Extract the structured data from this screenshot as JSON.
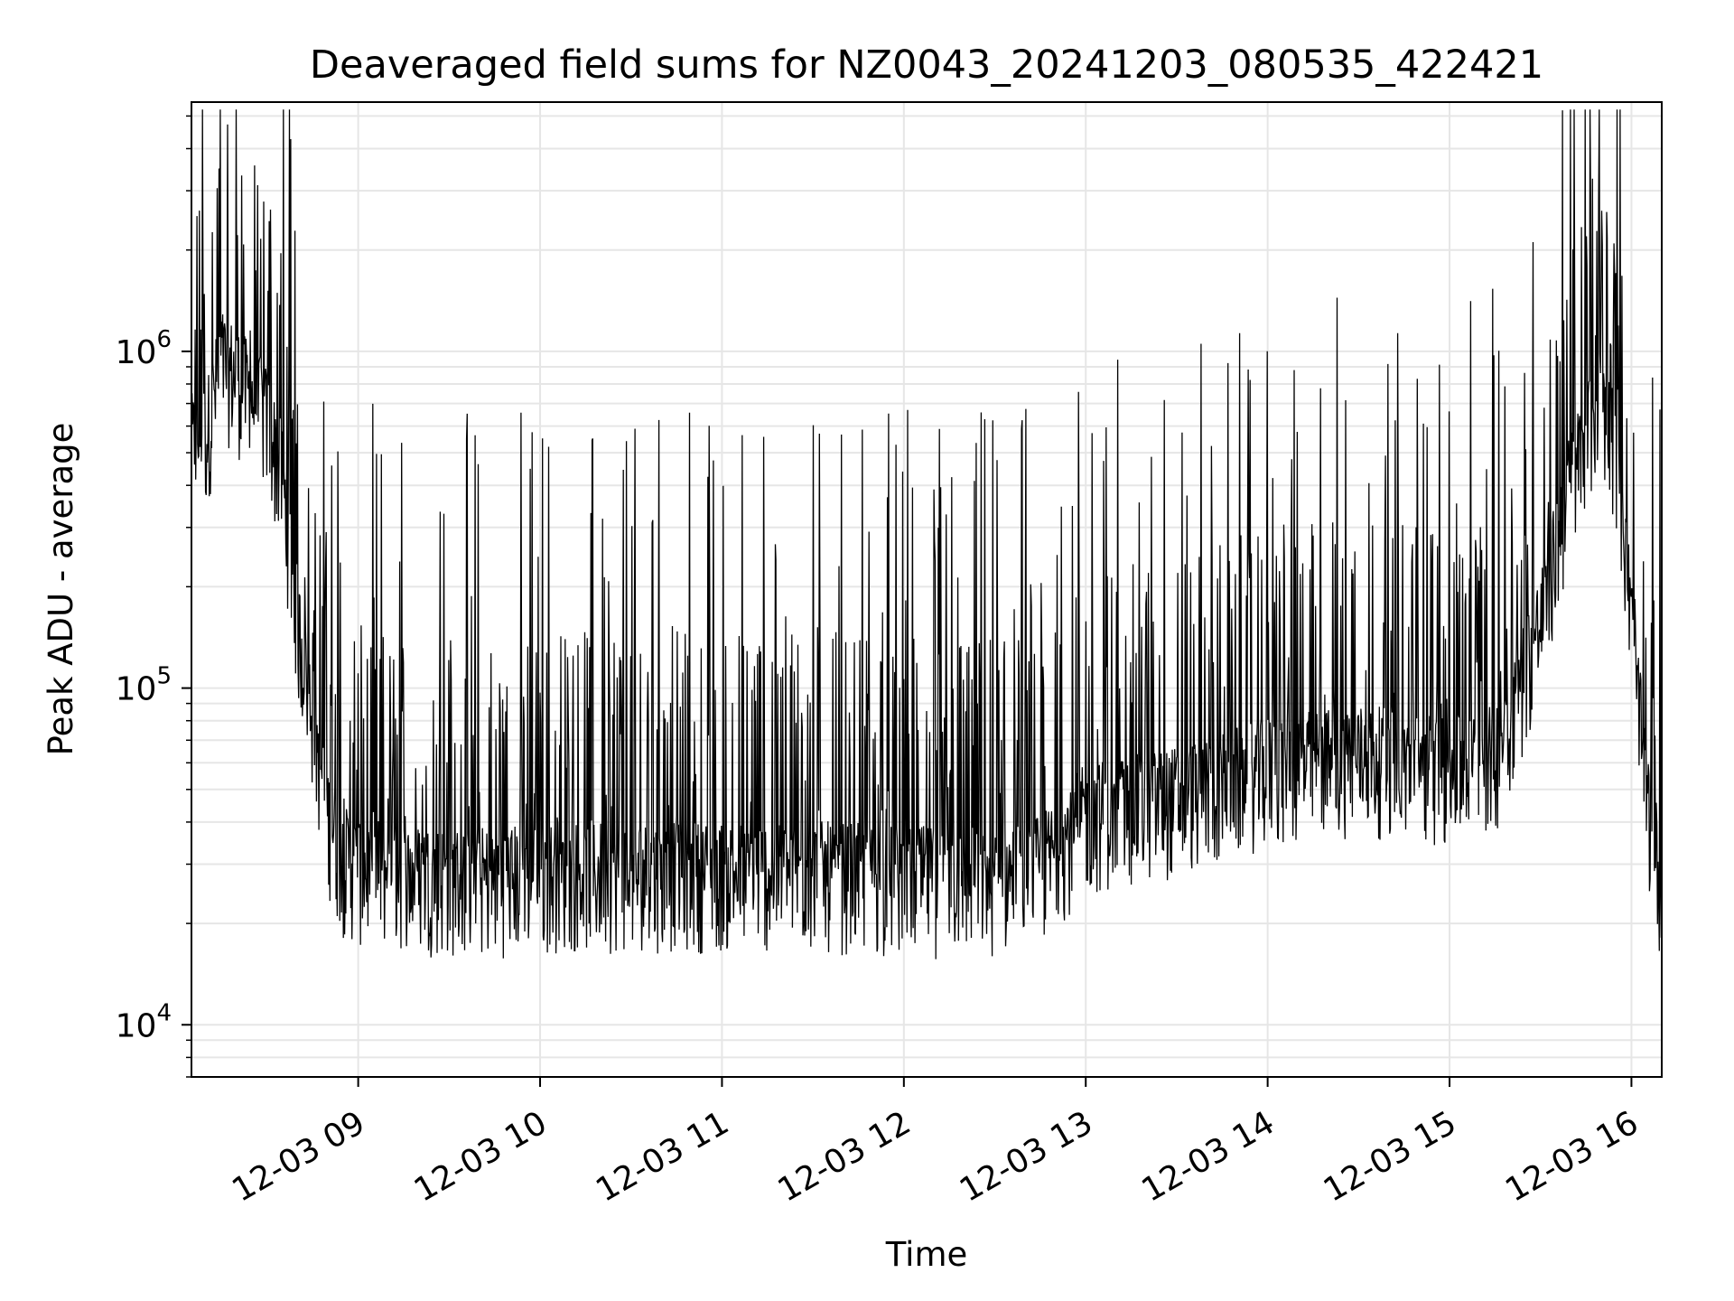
{
  "chart_data": {
    "type": "line",
    "title": "Deaveraged field sums for NZ0043_20241203_080535_422421",
    "xlabel": "Time",
    "ylabel": "Peak ADU - average",
    "yscale": "log",
    "ylim": [
      7000,
      5500000
    ],
    "xlim": [
      "2024-12-03 08:05",
      "2024-12-03 16:10"
    ],
    "grid": true,
    "x_ticks": [
      "12-03 09",
      "12-03 10",
      "12-03 11",
      "12-03 12",
      "12-03 13",
      "12-03 14",
      "12-03 15",
      "12-03 16"
    ],
    "y_ticks": [
      {
        "value": 10000,
        "base": "10",
        "exp": "4"
      },
      {
        "value": 100000,
        "base": "10",
        "exp": "5"
      },
      {
        "value": 1000000,
        "base": "10",
        "exp": "6"
      }
    ],
    "line_color": "#000000",
    "series": [
      {
        "x": [
          "2024-12-03 08:05",
          "2024-12-03 08:10",
          "2024-12-03 08:15",
          "2024-12-03 08:20",
          "2024-12-03 08:25",
          "2024-12-03 08:30",
          "2024-12-03 08:35",
          "2024-12-03 08:40",
          "2024-12-03 08:45",
          "2024-12-03 08:50",
          "2024-12-03 08:55",
          "2024-12-03 09:00",
          "2024-12-03 09:15",
          "2024-12-03 09:30",
          "2024-12-03 09:45",
          "2024-12-03 10:00",
          "2024-12-03 10:30",
          "2024-12-03 11:00",
          "2024-12-03 11:30",
          "2024-12-03 12:00",
          "2024-12-03 12:30",
          "2024-12-03 12:45",
          "2024-12-03 13:00",
          "2024-12-03 13:30",
          "2024-12-03 14:00",
          "2024-12-03 14:30",
          "2024-12-03 15:00",
          "2024-12-03 15:15",
          "2024-12-03 15:30",
          "2024-12-03 15:40",
          "2024-12-03 15:50",
          "2024-12-03 15:55",
          "2024-12-03 16:00",
          "2024-12-03 16:05",
          "2024-12-03 16:10"
        ],
        "y": [
          500000,
          550000,
          900000,
          800000,
          700000,
          600000,
          400000,
          150000,
          80000,
          40000,
          30000,
          28000,
          27000,
          26000,
          26000,
          27000,
          27000,
          27000,
          27000,
          26000,
          26000,
          28000,
          40000,
          45000,
          55000,
          60000,
          55000,
          60000,
          150000,
          400000,
          700000,
          500000,
          150000,
          45000,
          25000
        ]
      }
    ]
  }
}
